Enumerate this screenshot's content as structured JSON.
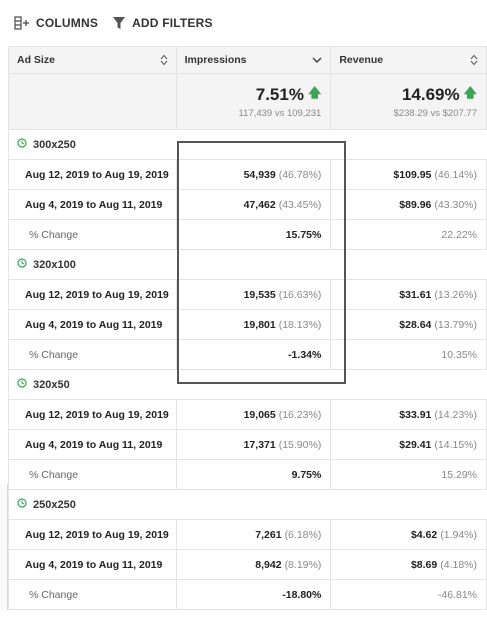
{
  "toolbar": {
    "columns_label": "COLUMNS",
    "filters_label": "ADD FILTERS"
  },
  "headers": {
    "ad_size": "Ad Size",
    "impressions": "Impressions",
    "revenue": "Revenue"
  },
  "summary": {
    "impressions": {
      "value": "7.51%",
      "compare": "117,439 vs 109,231"
    },
    "revenue": {
      "value": "14.69%",
      "compare": "$238.29 vs $207.77"
    }
  },
  "groups": [
    {
      "name": "300x250",
      "rows": [
        {
          "label": "Aug 12, 2019 to Aug 19, 2019",
          "imp": "54,939",
          "imp_pct": "(46.78%)",
          "rev": "$109.95",
          "rev_pct": "(46.14%)"
        },
        {
          "label": "Aug 4, 2019 to Aug 11, 2019",
          "imp": "47,462",
          "imp_pct": "(43.45%)",
          "rev": "$89.96",
          "rev_pct": "(43.30%)"
        }
      ],
      "change": {
        "label": "% Change",
        "imp": "15.75%",
        "rev": "22.22%"
      }
    },
    {
      "name": "320x100",
      "rows": [
        {
          "label": "Aug 12, 2019 to Aug 19, 2019",
          "imp": "19,535",
          "imp_pct": "(16.63%)",
          "rev": "$31.61",
          "rev_pct": "(13.26%)"
        },
        {
          "label": "Aug 4, 2019 to Aug 11, 2019",
          "imp": "19,801",
          "imp_pct": "(18.13%)",
          "rev": "$28.64",
          "rev_pct": "(13.79%)"
        }
      ],
      "change": {
        "label": "% Change",
        "imp": "-1.34%",
        "rev": "10.35%"
      }
    },
    {
      "name": "320x50",
      "rows": [
        {
          "label": "Aug 12, 2019 to Aug 19, 2019",
          "imp": "19,065",
          "imp_pct": "(16.23%)",
          "rev": "$33.91",
          "rev_pct": "(14.23%)"
        },
        {
          "label": "Aug 4, 2019 to Aug 11, 2019",
          "imp": "17,371",
          "imp_pct": "(15.90%)",
          "rev": "$29.41",
          "rev_pct": "(14.15%)"
        }
      ],
      "change": {
        "label": "% Change",
        "imp": "9.75%",
        "rev": "15.29%"
      }
    },
    {
      "name": "250x250",
      "rows": [
        {
          "label": "Aug 12, 2019 to Aug 19, 2019",
          "imp": "7,261",
          "imp_pct": "(6.18%)",
          "rev": "$4.62",
          "rev_pct": "(1.94%)"
        },
        {
          "label": "Aug 4, 2019 to Aug 11, 2019",
          "imp": "8,942",
          "imp_pct": "(8.19%)",
          "rev": "$8.69",
          "rev_pct": "(4.18%)"
        }
      ],
      "change": {
        "label": "% Change",
        "imp": "-18.80%",
        "rev": "-46.81%"
      }
    }
  ],
  "colors": {
    "up_arrow": "#3aa655",
    "group_icon": "#3aa655",
    "highlight_border": "#555555"
  }
}
